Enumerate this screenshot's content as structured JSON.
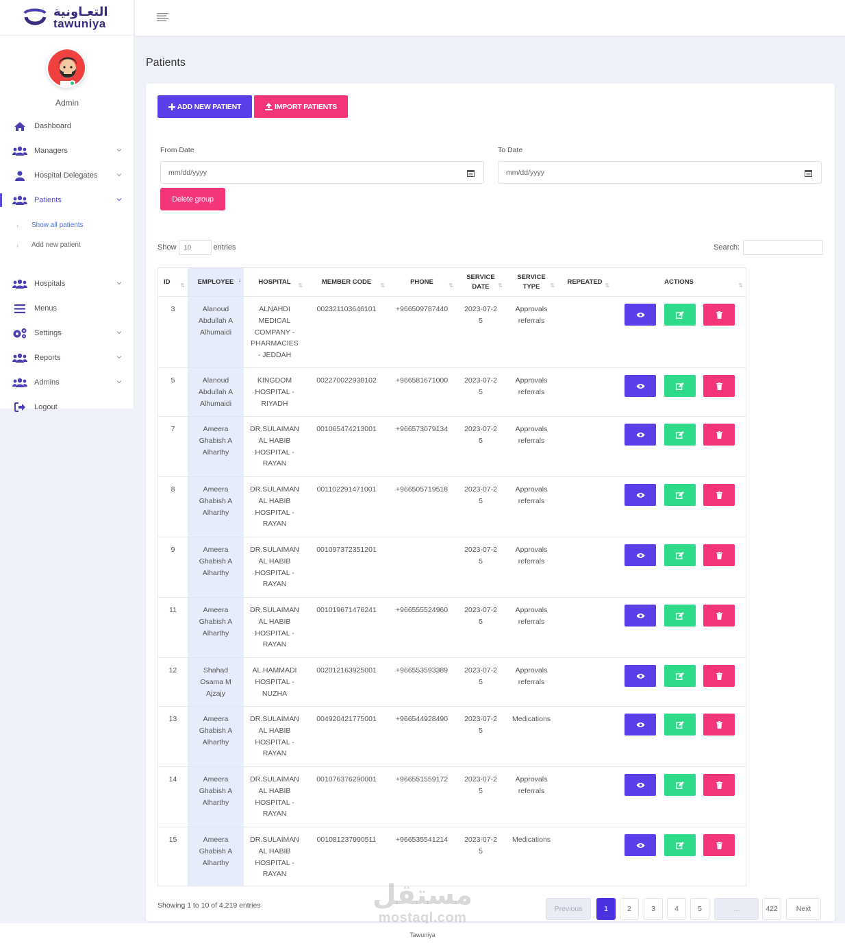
{
  "brand": {
    "name_ar": "التعـاونية",
    "name_en": "tawuniya"
  },
  "user": {
    "name": "Admin",
    "status_color": "#2ec27e"
  },
  "sidebar": {
    "items": [
      {
        "label": "Dashboard",
        "icon": "home-icon",
        "has_chevron": false
      },
      {
        "label": "Managers",
        "icon": "users-icon",
        "has_chevron": true
      },
      {
        "label": "Hospital Delegates",
        "icon": "user-icon",
        "has_chevron": true
      },
      {
        "label": "Patients",
        "icon": "users-icon",
        "has_chevron": true,
        "active": true
      },
      {
        "label": "Hospitals",
        "icon": "users-icon",
        "has_chevron": true
      },
      {
        "label": "Menus",
        "icon": "bars-icon",
        "has_chevron": false
      },
      {
        "label": "Settings",
        "icon": "gears-icon",
        "has_chevron": true
      },
      {
        "label": "Reports",
        "icon": "users-icon",
        "has_chevron": true
      },
      {
        "label": "Admins",
        "icon": "users-icon",
        "has_chevron": true
      },
      {
        "label": "Logout",
        "icon": "sign-out-icon",
        "has_chevron": false
      }
    ],
    "patients_sub": [
      {
        "label": "Show all patients",
        "active": true
      },
      {
        "label": "Add new patient",
        "active": false
      }
    ]
  },
  "page": {
    "title": "Patients"
  },
  "toolbar": {
    "add_label": "ADD NEW PATIENT",
    "import_label": "IMPORT PATIENTS",
    "delete_group_label": "Delete group"
  },
  "filters": {
    "from_label": "From Date",
    "to_label": "To Date",
    "from_placeholder": "mm/dd/yyyy",
    "to_placeholder": "mm/dd/yyyy"
  },
  "table_controls": {
    "show_label": "Show",
    "show_value": "10",
    "entries_label": "entries",
    "search_label": "Search:"
  },
  "table": {
    "columns": [
      "ID",
      "EMPLOYEE",
      "HOSPITAL",
      "MEMBER CODE",
      "PHONE",
      "SERVICE DATE",
      "SERVICE TYPE",
      "REPEATED",
      "ACTIONS"
    ],
    "rows": [
      {
        "id": "3",
        "employee": "Alanoud Abdullah A Alhumaidi",
        "hospital": "ALNAHDI MEDICAL COMPANY - PHARMACIES - JEDDAH",
        "member_code": "002321103646101",
        "phone": "+966509787440",
        "service_date": "2023-07-25",
        "service_type": "Approvals referrals",
        "repeated": ""
      },
      {
        "id": "5",
        "employee": "Alanoud Abdullah A Alhumaidi",
        "hospital": "KINGDOM HOSPITAL - RIYADH",
        "member_code": "002270022938102",
        "phone": "+966581671000",
        "service_date": "2023-07-25",
        "service_type": "Approvals referrals",
        "repeated": ""
      },
      {
        "id": "7",
        "employee": "Ameera Ghabish A Alharthy",
        "hospital": "DR.SULAIMAN AL HABIB HOSPITAL - RAYAN",
        "member_code": "001065474213001",
        "phone": "+966573079134",
        "service_date": "2023-07-25",
        "service_type": "Approvals referrals",
        "repeated": ""
      },
      {
        "id": "8",
        "employee": "Ameera Ghabish A Alharthy",
        "hospital": "DR.SULAIMAN AL HABIB HOSPITAL - RAYAN",
        "member_code": "001102291471001",
        "phone": "+966505719518",
        "service_date": "2023-07-25",
        "service_type": "Approvals referrals",
        "repeated": ""
      },
      {
        "id": "9",
        "employee": "Ameera Ghabish A Alharthy",
        "hospital": "DR.SULAIMAN AL HABIB HOSPITAL - RAYAN",
        "member_code": "001097372351201",
        "phone": "",
        "service_date": "2023-07-25",
        "service_type": "Approvals referrals",
        "repeated": ""
      },
      {
        "id": "11",
        "employee": "Ameera Ghabish A Alharthy",
        "hospital": "DR.SULAIMAN AL HABIB HOSPITAL - RAYAN",
        "member_code": "001019671476241",
        "phone": "+966555524960",
        "service_date": "2023-07-25",
        "service_type": "Approvals referrals",
        "repeated": ""
      },
      {
        "id": "12",
        "employee": "Shahad Osama M Ajzajy",
        "hospital": "AL HAMMADI HOSPITAL - NUZHA",
        "member_code": "002012163925001",
        "phone": "+966553593389",
        "service_date": "2023-07-25",
        "service_type": "Approvals referrals",
        "repeated": ""
      },
      {
        "id": "13",
        "employee": "Ameera Ghabish A Alharthy",
        "hospital": "DR.SULAIMAN AL HABIB HOSPITAL - RAYAN",
        "member_code": "004920421775001",
        "phone": "+966544928490",
        "service_date": "2023-07-25",
        "service_type": "Medications",
        "repeated": ""
      },
      {
        "id": "14",
        "employee": "Ameera Ghabish A Alharthy",
        "hospital": "DR.SULAIMAN AL HABIB HOSPITAL - RAYAN",
        "member_code": "001076376290001",
        "phone": "+966551559172",
        "service_date": "2023-07-25",
        "service_type": "Approvals referrals",
        "repeated": ""
      },
      {
        "id": "15",
        "employee": "Ameera Ghabish A Alharthy",
        "hospital": "DR.SULAIMAN AL HABIB HOSPITAL - RAYAN",
        "member_code": "001081237990511",
        "phone": "+966535541214",
        "service_date": "2023-07-25",
        "service_type": "Medications",
        "repeated": ""
      }
    ]
  },
  "pagination": {
    "info": "Showing 1 to 10 of 4,219 entries",
    "previous": "Previous",
    "next": "Next",
    "pages": [
      "1",
      "2",
      "3",
      "4",
      "5",
      "…",
      "422"
    ],
    "current": "1"
  },
  "footer": {
    "text": "Tawuniya"
  },
  "watermark": {
    "ar": "مستقل",
    "en": "mostaql.com"
  },
  "colors": {
    "primary": "#5a3ee8",
    "pink": "#f5357a",
    "green": "#2fdb8a",
    "active_nav": "#5a4ee0"
  }
}
